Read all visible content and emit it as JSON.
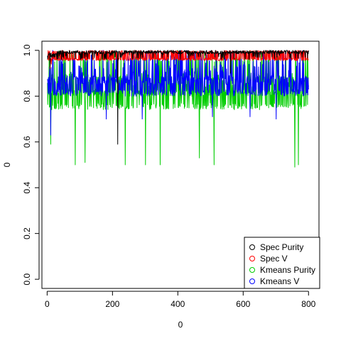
{
  "chart_data": {
    "type": "line",
    "title": "",
    "xlabel": "0",
    "ylabel": "0",
    "xlim": [
      -16,
      832
    ],
    "ylim": [
      -0.04,
      1.04
    ],
    "x_ticks": [
      0,
      200,
      400,
      600,
      800
    ],
    "x_tick_labels": [
      "0",
      "200",
      "400",
      "600",
      "800"
    ],
    "y_ticks": [
      0.0,
      0.2,
      0.4,
      0.6,
      0.8,
      1.0
    ],
    "y_tick_labels": [
      "0.0",
      "0.2",
      "0.4",
      "0.6",
      "0.8",
      "1.0"
    ],
    "grid": false,
    "legend_position": "bottom-right",
    "n_points": 800,
    "series": [
      {
        "name": "Spec Purity",
        "color": "#000000",
        "typical_range": [
          0.96,
          1.0
        ],
        "rare_min": [
          {
            "x": 8,
            "y": 0.93
          },
          {
            "x": 215,
            "y": 0.59
          },
          {
            "x": 560,
            "y": 0.9
          }
        ]
      },
      {
        "name": "Spec V",
        "color": "#ff0000",
        "typical_range": [
          0.95,
          1.0
        ],
        "rare_min": [
          {
            "x": 8,
            "y": 0.92
          },
          {
            "x": 12,
            "y": 0.94
          }
        ]
      },
      {
        "name": "Kmeans Purity",
        "color": "#00cd00",
        "typical_range": [
          0.73,
          1.0
        ],
        "rare_min": [
          {
            "x": 10,
            "y": 0.59
          },
          {
            "x": 85,
            "y": 0.5
          },
          {
            "x": 115,
            "y": 0.51
          },
          {
            "x": 238,
            "y": 0.5
          },
          {
            "x": 300,
            "y": 0.5
          },
          {
            "x": 345,
            "y": 0.5
          },
          {
            "x": 465,
            "y": 0.53
          },
          {
            "x": 510,
            "y": 0.5
          },
          {
            "x": 757,
            "y": 0.49
          },
          {
            "x": 768,
            "y": 0.5
          }
        ]
      },
      {
        "name": "Kmeans V",
        "color": "#0000ff",
        "typical_range": [
          0.79,
          1.0
        ],
        "rare_min": [
          {
            "x": 10,
            "y": 0.63
          },
          {
            "x": 180,
            "y": 0.7
          },
          {
            "x": 290,
            "y": 0.7
          },
          {
            "x": 505,
            "y": 0.71
          },
          {
            "x": 620,
            "y": 0.71
          },
          {
            "x": 700,
            "y": 0.7
          }
        ]
      }
    ]
  }
}
